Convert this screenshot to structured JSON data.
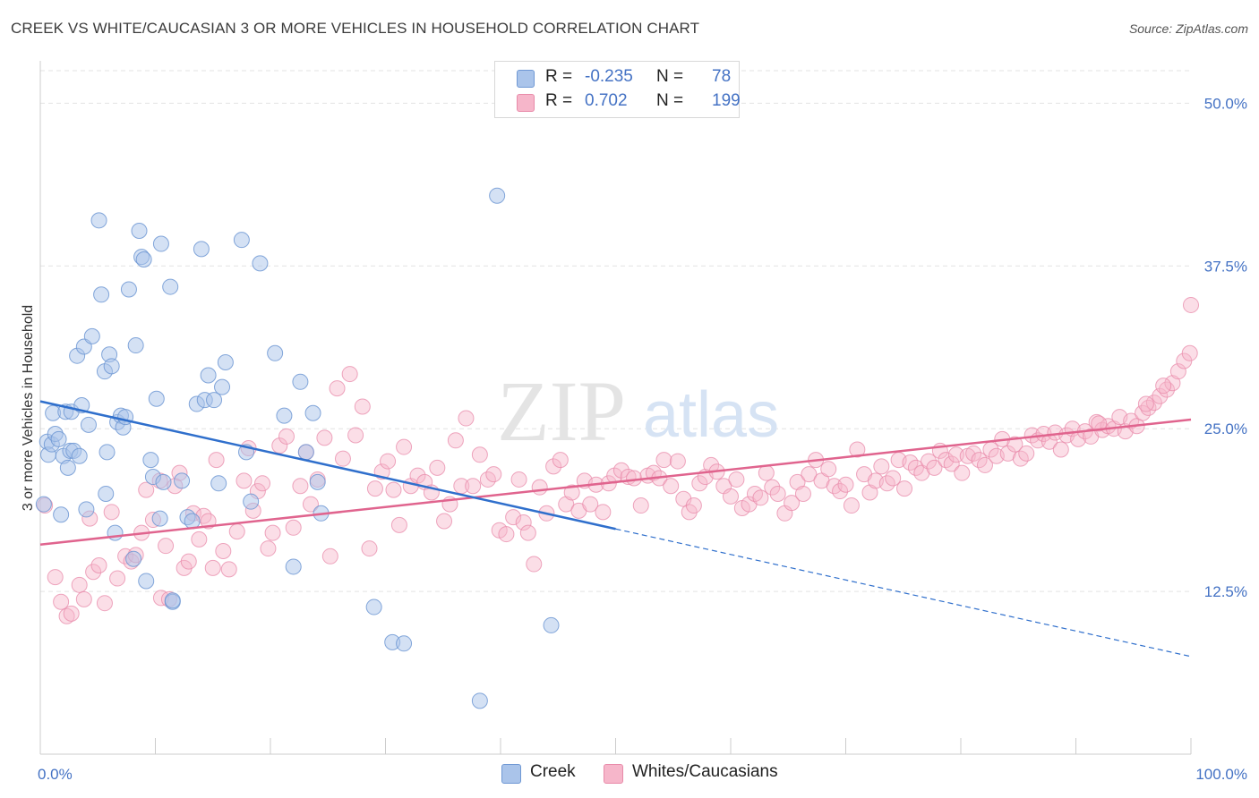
{
  "title": "CREEK VS WHITE/CAUCASIAN 3 OR MORE VEHICLES IN HOUSEHOLD CORRELATION CHART",
  "source": "Source: ZipAtlas.com",
  "watermark": {
    "zip": "ZIP",
    "atlas": "atlas"
  },
  "legend": {
    "rows": [
      {
        "r_label": "R =",
        "r_value": "-0.235",
        "n_label": "N =",
        "n_value": "78"
      },
      {
        "r_label": "R =",
        "r_value": "0.702",
        "n_label": "N =",
        "n_value": "199"
      }
    ]
  },
  "colors": {
    "creek_fill": "#aac4ea",
    "creek_stroke": "#6f98d4",
    "creek_line": "#2f6fcc",
    "white_fill": "#f6b6ca",
    "white_stroke": "#e88aa9",
    "white_line": "#e0648e",
    "tick": "#4472c4",
    "grid": "#e3e3e3"
  },
  "chart_data": {
    "type": "scatter",
    "title": "CREEK VS WHITE/CAUCASIAN 3 OR MORE VEHICLES IN HOUSEHOLD CORRELATION CHART",
    "xlabel": "",
    "ylabel": "3 or more Vehicles in Household",
    "xlim": [
      0,
      100
    ],
    "ylim": [
      0,
      52.5
    ],
    "x_tick_labels": [
      "0.0%",
      "100.0%"
    ],
    "y_ticks": [
      12.5,
      25.0,
      37.5,
      50.0
    ],
    "y_tick_labels": [
      "12.5%",
      "25.0%",
      "37.5%",
      "50.0%"
    ],
    "grid": true,
    "legend_position": "top-center",
    "series": [
      {
        "name": "Creek",
        "r": -0.235,
        "n": 78,
        "trend": {
          "x0": 0,
          "y0": 27.1,
          "x1": 50,
          "y1": 17.3,
          "dashed_to_x": 100,
          "dashed_to_y": 7.5
        },
        "points": [
          [
            0.3,
            19.2
          ],
          [
            0.6,
            24.0
          ],
          [
            0.7,
            23.0
          ],
          [
            1.0,
            23.8
          ],
          [
            1.1,
            26.2
          ],
          [
            1.3,
            24.6
          ],
          [
            1.6,
            24.2
          ],
          [
            1.8,
            18.4
          ],
          [
            2.0,
            22.9
          ],
          [
            2.2,
            26.3
          ],
          [
            2.4,
            22.0
          ],
          [
            2.6,
            23.3
          ],
          [
            2.7,
            26.3
          ],
          [
            2.9,
            23.3
          ],
          [
            3.2,
            30.6
          ],
          [
            3.4,
            22.9
          ],
          [
            3.6,
            26.8
          ],
          [
            3.8,
            31.3
          ],
          [
            4.0,
            18.8
          ],
          [
            4.2,
            25.3
          ],
          [
            4.5,
            32.1
          ],
          [
            5.1,
            41.0
          ],
          [
            5.3,
            35.3
          ],
          [
            5.6,
            29.4
          ],
          [
            5.7,
            20.0
          ],
          [
            5.8,
            23.2
          ],
          [
            6.0,
            30.7
          ],
          [
            6.2,
            29.8
          ],
          [
            6.5,
            17.0
          ],
          [
            6.7,
            25.5
          ],
          [
            7.0,
            26.0
          ],
          [
            7.2,
            25.1
          ],
          [
            7.4,
            25.9
          ],
          [
            7.7,
            35.7
          ],
          [
            8.1,
            15.0
          ],
          [
            8.3,
            31.4
          ],
          [
            8.6,
            40.2
          ],
          [
            8.8,
            38.2
          ],
          [
            9.0,
            38.0
          ],
          [
            9.2,
            13.3
          ],
          [
            9.6,
            22.6
          ],
          [
            9.8,
            21.3
          ],
          [
            10.1,
            27.3
          ],
          [
            10.4,
            18.1
          ],
          [
            10.5,
            39.2
          ],
          [
            10.7,
            20.9
          ],
          [
            11.3,
            35.9
          ],
          [
            11.5,
            11.7
          ],
          [
            12.3,
            21.0
          ],
          [
            12.8,
            18.2
          ],
          [
            13.2,
            17.9
          ],
          [
            13.6,
            26.9
          ],
          [
            14.0,
            38.8
          ],
          [
            14.3,
            27.2
          ],
          [
            14.6,
            29.1
          ],
          [
            15.1,
            27.2
          ],
          [
            15.5,
            20.8
          ],
          [
            15.8,
            28.2
          ],
          [
            16.1,
            30.1
          ],
          [
            17.5,
            39.5
          ],
          [
            17.9,
            23.2
          ],
          [
            18.3,
            19.4
          ],
          [
            19.1,
            37.7
          ],
          [
            20.4,
            30.8
          ],
          [
            21.2,
            26.0
          ],
          [
            22.0,
            14.4
          ],
          [
            22.6,
            28.6
          ],
          [
            23.7,
            26.2
          ],
          [
            23.1,
            23.2
          ],
          [
            24.1,
            20.9
          ],
          [
            24.4,
            18.5
          ],
          [
            29.0,
            11.3
          ],
          [
            30.6,
            8.6
          ],
          [
            31.6,
            8.5
          ],
          [
            38.2,
            4.1
          ],
          [
            39.7,
            42.9
          ],
          [
            44.4,
            9.9
          ],
          [
            11.5,
            11.8
          ]
        ]
      },
      {
        "name": "Whites/Caucasians",
        "r": 0.702,
        "n": 199,
        "trend": {
          "x0": 0,
          "y0": 16.1,
          "x1": 100,
          "y1": 25.7
        },
        "points": [
          [
            0.4,
            19.1
          ],
          [
            1.3,
            13.6
          ],
          [
            1.8,
            11.7
          ],
          [
            2.3,
            10.6
          ],
          [
            2.7,
            10.8
          ],
          [
            3.4,
            13.0
          ],
          [
            3.8,
            11.9
          ],
          [
            4.3,
            18.1
          ],
          [
            4.6,
            14.0
          ],
          [
            5.1,
            14.5
          ],
          [
            5.6,
            11.6
          ],
          [
            6.2,
            18.6
          ],
          [
            6.7,
            13.5
          ],
          [
            7.4,
            15.2
          ],
          [
            7.9,
            14.8
          ],
          [
            8.3,
            15.3
          ],
          [
            8.8,
            17.0
          ],
          [
            9.2,
            20.3
          ],
          [
            9.8,
            18.0
          ],
          [
            10.4,
            21.0
          ],
          [
            10.5,
            12.0
          ],
          [
            10.9,
            16.0
          ],
          [
            11.2,
            11.9
          ],
          [
            11.7,
            20.6
          ],
          [
            12.1,
            21.6
          ],
          [
            12.5,
            14.3
          ],
          [
            12.9,
            14.8
          ],
          [
            13.3,
            18.5
          ],
          [
            13.8,
            16.5
          ],
          [
            14.2,
            18.3
          ],
          [
            14.6,
            17.9
          ],
          [
            15.0,
            14.3
          ],
          [
            15.3,
            22.6
          ],
          [
            15.9,
            15.6
          ],
          [
            16.4,
            14.2
          ],
          [
            17.1,
            17.1
          ],
          [
            17.7,
            21.0
          ],
          [
            18.1,
            23.5
          ],
          [
            18.5,
            18.7
          ],
          [
            18.9,
            20.2
          ],
          [
            19.3,
            20.8
          ],
          [
            19.8,
            15.8
          ],
          [
            20.2,
            17.0
          ],
          [
            20.8,
            23.7
          ],
          [
            21.4,
            24.4
          ],
          [
            22.0,
            17.4
          ],
          [
            22.6,
            20.6
          ],
          [
            23.1,
            23.2
          ],
          [
            23.5,
            19.2
          ],
          [
            24.1,
            21.1
          ],
          [
            24.7,
            24.3
          ],
          [
            25.2,
            15.2
          ],
          [
            25.8,
            28.1
          ],
          [
            26.3,
            22.7
          ],
          [
            26.9,
            29.2
          ],
          [
            27.4,
            24.5
          ],
          [
            28.0,
            26.7
          ],
          [
            28.6,
            15.8
          ],
          [
            29.1,
            20.4
          ],
          [
            29.7,
            21.7
          ],
          [
            30.2,
            22.5
          ],
          [
            30.7,
            20.3
          ],
          [
            31.2,
            17.6
          ],
          [
            31.6,
            23.6
          ],
          [
            32.2,
            20.6
          ],
          [
            32.8,
            21.4
          ],
          [
            33.4,
            20.9
          ],
          [
            34.0,
            20.1
          ],
          [
            34.5,
            22.0
          ],
          [
            35.1,
            17.9
          ],
          [
            35.6,
            19.2
          ],
          [
            36.1,
            24.1
          ],
          [
            36.6,
            20.6
          ],
          [
            37.0,
            25.8
          ],
          [
            37.6,
            20.6
          ],
          [
            38.2,
            23.0
          ],
          [
            38.9,
            21.1
          ],
          [
            39.4,
            21.5
          ],
          [
            39.9,
            17.2
          ],
          [
            40.5,
            16.9
          ],
          [
            41.1,
            18.2
          ],
          [
            41.6,
            21.1
          ],
          [
            42.0,
            17.8
          ],
          [
            42.4,
            17.0
          ],
          [
            42.9,
            14.6
          ],
          [
            43.4,
            20.5
          ],
          [
            44.0,
            18.5
          ],
          [
            44.6,
            22.1
          ],
          [
            45.2,
            22.6
          ],
          [
            45.7,
            19.2
          ],
          [
            46.2,
            20.1
          ],
          [
            46.8,
            18.7
          ],
          [
            47.3,
            21.0
          ],
          [
            47.8,
            19.2
          ],
          [
            48.3,
            20.7
          ],
          [
            48.9,
            18.6
          ],
          [
            49.4,
            20.8
          ],
          [
            49.9,
            21.4
          ],
          [
            50.5,
            21.8
          ],
          [
            51.1,
            21.3
          ],
          [
            51.6,
            21.2
          ],
          [
            52.2,
            19.1
          ],
          [
            52.8,
            21.4
          ],
          [
            53.3,
            21.6
          ],
          [
            53.8,
            21.2
          ],
          [
            54.2,
            22.6
          ],
          [
            54.8,
            20.6
          ],
          [
            55.4,
            22.5
          ],
          [
            55.9,
            19.6
          ],
          [
            56.4,
            18.6
          ],
          [
            56.8,
            19.1
          ],
          [
            57.3,
            20.8
          ],
          [
            57.8,
            21.3
          ],
          [
            58.3,
            22.2
          ],
          [
            58.8,
            21.7
          ],
          [
            59.4,
            20.6
          ],
          [
            60.0,
            19.8
          ],
          [
            60.5,
            21.1
          ],
          [
            61.0,
            18.9
          ],
          [
            61.6,
            19.2
          ],
          [
            62.1,
            20.0
          ],
          [
            62.6,
            19.7
          ],
          [
            63.1,
            21.6
          ],
          [
            63.6,
            20.5
          ],
          [
            64.1,
            20.0
          ],
          [
            64.7,
            18.5
          ],
          [
            65.3,
            19.3
          ],
          [
            65.8,
            20.9
          ],
          [
            66.3,
            20.0
          ],
          [
            66.8,
            21.5
          ],
          [
            67.4,
            22.6
          ],
          [
            67.9,
            21.0
          ],
          [
            68.5,
            21.9
          ],
          [
            69.0,
            20.6
          ],
          [
            69.5,
            20.2
          ],
          [
            70.0,
            20.7
          ],
          [
            70.5,
            19.1
          ],
          [
            71.0,
            23.4
          ],
          [
            71.6,
            21.5
          ],
          [
            72.1,
            20.1
          ],
          [
            72.6,
            21.0
          ],
          [
            73.1,
            22.1
          ],
          [
            73.6,
            20.8
          ],
          [
            74.1,
            21.2
          ],
          [
            74.6,
            22.6
          ],
          [
            75.1,
            20.4
          ],
          [
            75.6,
            22.4
          ],
          [
            76.1,
            22.0
          ],
          [
            76.6,
            21.6
          ],
          [
            77.2,
            22.5
          ],
          [
            77.7,
            22.0
          ],
          [
            78.2,
            23.3
          ],
          [
            78.7,
            22.6
          ],
          [
            79.2,
            22.3
          ],
          [
            79.6,
            23.0
          ],
          [
            80.1,
            21.6
          ],
          [
            80.6,
            22.9
          ],
          [
            81.1,
            23.1
          ],
          [
            81.6,
            22.6
          ],
          [
            82.1,
            22.2
          ],
          [
            82.6,
            23.4
          ],
          [
            83.1,
            22.9
          ],
          [
            83.6,
            24.2
          ],
          [
            84.1,
            23.1
          ],
          [
            84.7,
            23.8
          ],
          [
            85.2,
            22.7
          ],
          [
            85.7,
            23.1
          ],
          [
            86.2,
            24.5
          ],
          [
            86.7,
            24.1
          ],
          [
            87.2,
            24.6
          ],
          [
            87.7,
            24.0
          ],
          [
            88.2,
            24.7
          ],
          [
            88.7,
            23.4
          ],
          [
            89.2,
            24.5
          ],
          [
            89.7,
            25.0
          ],
          [
            90.2,
            24.2
          ],
          [
            90.8,
            24.8
          ],
          [
            91.3,
            24.4
          ],
          [
            91.8,
            25.5
          ],
          [
            92.3,
            24.9
          ],
          [
            92.8,
            25.2
          ],
          [
            93.3,
            25.0
          ],
          [
            93.8,
            25.9
          ],
          [
            94.3,
            24.8
          ],
          [
            94.8,
            25.6
          ],
          [
            95.3,
            25.2
          ],
          [
            95.8,
            26.2
          ],
          [
            96.3,
            26.6
          ],
          [
            96.8,
            27.0
          ],
          [
            97.3,
            27.5
          ],
          [
            97.9,
            28.0
          ],
          [
            98.4,
            28.5
          ],
          [
            98.9,
            29.4
          ],
          [
            99.4,
            30.2
          ],
          [
            99.9,
            30.8
          ],
          [
            100.0,
            34.5
          ],
          [
            97.6,
            28.3
          ],
          [
            96.1,
            26.9
          ],
          [
            92.0,
            25.4
          ]
        ]
      }
    ]
  }
}
